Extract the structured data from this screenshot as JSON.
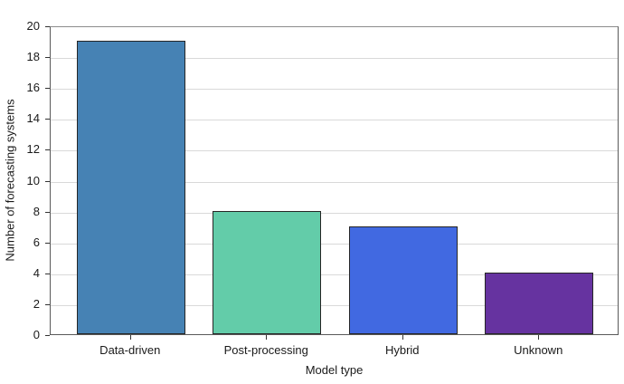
{
  "chart_data": {
    "type": "bar",
    "title": "",
    "xlabel": "Model type",
    "ylabel": "Number of forecasting systems",
    "categories": [
      "Data-driven",
      "Post-processing",
      "Hybrid",
      "Unknown"
    ],
    "values": [
      19,
      8,
      7,
      4
    ],
    "bar_colors": [
      "#4682b4",
      "#63cca9",
      "#4169e1",
      "#6633a0"
    ],
    "bar_edge_color": "#262626",
    "ylim": [
      0,
      20
    ],
    "yticks": [
      0,
      2,
      4,
      6,
      8,
      10,
      12,
      14,
      16,
      18,
      20
    ],
    "grid": "horizontal",
    "gridline_color": "#d9d9d9",
    "legend": "none"
  }
}
